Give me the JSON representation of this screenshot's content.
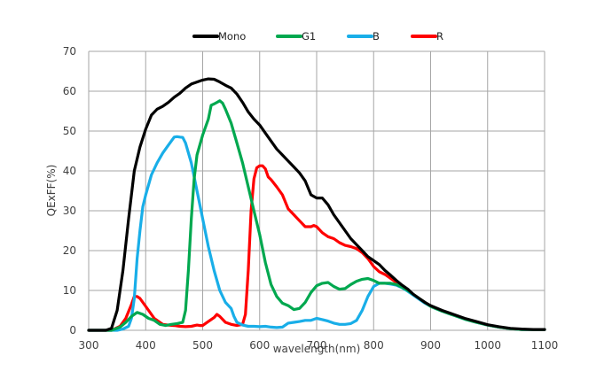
{
  "chart_data": {
    "type": "line",
    "title": "",
    "xlabel": "wavelength(nm)",
    "ylabel": "QExFF(%)",
    "xlim": [
      300,
      1100
    ],
    "ylim": [
      0,
      70
    ],
    "xticks": [
      300,
      400,
      500,
      600,
      700,
      800,
      900,
      1000,
      1100
    ],
    "yticks": [
      0,
      10,
      20,
      30,
      40,
      50,
      60,
      70
    ],
    "grid": true,
    "legend_position": "top",
    "series": [
      {
        "name": "Mono",
        "color": "#000000",
        "points": [
          [
            300,
            0
          ],
          [
            330,
            0
          ],
          [
            340,
            0.5
          ],
          [
            350,
            5
          ],
          [
            360,
            15
          ],
          [
            370,
            28
          ],
          [
            380,
            40
          ],
          [
            390,
            46
          ],
          [
            400,
            50.5
          ],
          [
            410,
            54
          ],
          [
            420,
            55.5
          ],
          [
            430,
            56.2
          ],
          [
            440,
            57.2
          ],
          [
            450,
            58.5
          ],
          [
            460,
            59.5
          ],
          [
            470,
            60.8
          ],
          [
            480,
            61.8
          ],
          [
            490,
            62.3
          ],
          [
            500,
            62.8
          ],
          [
            510,
            63.1
          ],
          [
            520,
            63
          ],
          [
            530,
            62.3
          ],
          [
            540,
            61.5
          ],
          [
            550,
            60.8
          ],
          [
            560,
            59.3
          ],
          [
            570,
            57.2
          ],
          [
            580,
            54.8
          ],
          [
            590,
            53
          ],
          [
            600,
            51.5
          ],
          [
            610,
            49.5
          ],
          [
            620,
            47.5
          ],
          [
            630,
            45.5
          ],
          [
            640,
            44
          ],
          [
            650,
            42.5
          ],
          [
            660,
            41
          ],
          [
            670,
            39.5
          ],
          [
            680,
            37.5
          ],
          [
            690,
            34
          ],
          [
            700,
            33.2
          ],
          [
            710,
            33.2
          ],
          [
            720,
            31.5
          ],
          [
            730,
            29
          ],
          [
            740,
            27
          ],
          [
            750,
            25
          ],
          [
            760,
            23
          ],
          [
            770,
            21.5
          ],
          [
            780,
            20
          ],
          [
            790,
            18.5
          ],
          [
            800,
            17.5
          ],
          [
            810,
            16.5
          ],
          [
            820,
            15
          ],
          [
            830,
            13.8
          ],
          [
            840,
            12.5
          ],
          [
            850,
            11.3
          ],
          [
            860,
            10.3
          ],
          [
            870,
            9
          ],
          [
            880,
            8
          ],
          [
            890,
            7
          ],
          [
            900,
            6.2
          ],
          [
            920,
            5
          ],
          [
            940,
            4
          ],
          [
            960,
            3
          ],
          [
            980,
            2.2
          ],
          [
            1000,
            1.4
          ],
          [
            1020,
            0.9
          ],
          [
            1040,
            0.5
          ],
          [
            1060,
            0.3
          ],
          [
            1080,
            0.2
          ],
          [
            1100,
            0.2
          ]
        ]
      },
      {
        "name": "G1",
        "color": "#00a84f",
        "points": [
          [
            300,
            0
          ],
          [
            340,
            0
          ],
          [
            355,
            0.8
          ],
          [
            365,
            2
          ],
          [
            375,
            3.5
          ],
          [
            385,
            4.5
          ],
          [
            395,
            4
          ],
          [
            405,
            3
          ],
          [
            415,
            2.5
          ],
          [
            425,
            1.5
          ],
          [
            435,
            1.2
          ],
          [
            445,
            1.5
          ],
          [
            455,
            1.7
          ],
          [
            465,
            2
          ],
          [
            470,
            5
          ],
          [
            475,
            15
          ],
          [
            480,
            28
          ],
          [
            485,
            38
          ],
          [
            490,
            44
          ],
          [
            500,
            49
          ],
          [
            510,
            53
          ],
          [
            515,
            56.5
          ],
          [
            520,
            56.8
          ],
          [
            525,
            57.2
          ],
          [
            530,
            57.6
          ],
          [
            535,
            57
          ],
          [
            540,
            55.5
          ],
          [
            550,
            52
          ],
          [
            560,
            47
          ],
          [
            570,
            42
          ],
          [
            580,
            36
          ],
          [
            590,
            30
          ],
          [
            600,
            24
          ],
          [
            610,
            17
          ],
          [
            620,
            11.5
          ],
          [
            630,
            8.5
          ],
          [
            640,
            6.8
          ],
          [
            650,
            6.2
          ],
          [
            660,
            5.2
          ],
          [
            670,
            5.5
          ],
          [
            680,
            7
          ],
          [
            690,
            9.5
          ],
          [
            700,
            11.2
          ],
          [
            710,
            11.8
          ],
          [
            720,
            12
          ],
          [
            730,
            11
          ],
          [
            740,
            10.3
          ],
          [
            750,
            10.5
          ],
          [
            760,
            11.5
          ],
          [
            770,
            12.3
          ],
          [
            780,
            12.8
          ],
          [
            790,
            13
          ],
          [
            800,
            12.5
          ],
          [
            810,
            11.8
          ],
          [
            820,
            11.8
          ],
          [
            830,
            11.8
          ],
          [
            840,
            11.5
          ],
          [
            850,
            10.8
          ],
          [
            860,
            10
          ],
          [
            870,
            9
          ],
          [
            880,
            8
          ],
          [
            890,
            7
          ],
          [
            900,
            6
          ],
          [
            920,
            4.8
          ],
          [
            940,
            3.8
          ],
          [
            960,
            2.8
          ],
          [
            980,
            2
          ],
          [
            1000,
            1.3
          ],
          [
            1020,
            0.8
          ],
          [
            1040,
            0.4
          ],
          [
            1060,
            0.2
          ],
          [
            1080,
            0.2
          ],
          [
            1100,
            0.2
          ]
        ]
      },
      {
        "name": "B",
        "color": "#19aee8",
        "points": [
          [
            300,
            0
          ],
          [
            350,
            0
          ],
          [
            360,
            0.3
          ],
          [
            370,
            1
          ],
          [
            375,
            3
          ],
          [
            380,
            8
          ],
          [
            385,
            18
          ],
          [
            390,
            25
          ],
          [
            395,
            31
          ],
          [
            400,
            34
          ],
          [
            410,
            39
          ],
          [
            420,
            42
          ],
          [
            430,
            44.5
          ],
          [
            440,
            46.5
          ],
          [
            450,
            48.5
          ],
          [
            455,
            48.6
          ],
          [
            460,
            48.5
          ],
          [
            465,
            48.4
          ],
          [
            470,
            47
          ],
          [
            480,
            42
          ],
          [
            490,
            35
          ],
          [
            500,
            28
          ],
          [
            510,
            21
          ],
          [
            520,
            15
          ],
          [
            530,
            10
          ],
          [
            540,
            7
          ],
          [
            550,
            5.5
          ],
          [
            555,
            3.5
          ],
          [
            560,
            2
          ],
          [
            570,
            1.3
          ],
          [
            580,
            1
          ],
          [
            590,
            1
          ],
          [
            600,
            0.9
          ],
          [
            610,
            1
          ],
          [
            620,
            0.8
          ],
          [
            630,
            0.7
          ],
          [
            640,
            0.8
          ],
          [
            650,
            1.8
          ],
          [
            660,
            2
          ],
          [
            670,
            2.2
          ],
          [
            680,
            2.5
          ],
          [
            690,
            2.5
          ],
          [
            700,
            3
          ],
          [
            710,
            2.7
          ],
          [
            720,
            2.3
          ],
          [
            730,
            1.8
          ],
          [
            740,
            1.5
          ],
          [
            750,
            1.5
          ],
          [
            760,
            1.7
          ],
          [
            770,
            2.5
          ],
          [
            780,
            5
          ],
          [
            790,
            8.5
          ],
          [
            800,
            11
          ],
          [
            810,
            11.8
          ],
          [
            820,
            11.8
          ],
          [
            830,
            11.6
          ],
          [
            840,
            11.3
          ],
          [
            850,
            10.7
          ],
          [
            860,
            9.8
          ],
          [
            870,
            8.8
          ],
          [
            880,
            7.8
          ],
          [
            890,
            6.8
          ],
          [
            900,
            6
          ],
          [
            920,
            4.8
          ],
          [
            940,
            3.8
          ],
          [
            960,
            2.8
          ],
          [
            980,
            2
          ],
          [
            1000,
            1.3
          ],
          [
            1020,
            0.8
          ],
          [
            1040,
            0.4
          ],
          [
            1060,
            0.2
          ],
          [
            1080,
            0.2
          ],
          [
            1100,
            0.2
          ]
        ]
      },
      {
        "name": "R",
        "color": "#ff0000",
        "points": [
          [
            300,
            0
          ],
          [
            340,
            0
          ],
          [
            355,
            1
          ],
          [
            365,
            3
          ],
          [
            375,
            6.5
          ],
          [
            380,
            8.5
          ],
          [
            385,
            8.5
          ],
          [
            390,
            8
          ],
          [
            400,
            6
          ],
          [
            410,
            4
          ],
          [
            415,
            3
          ],
          [
            420,
            2.5
          ],
          [
            430,
            1.5
          ],
          [
            440,
            1.3
          ],
          [
            450,
            1.2
          ],
          [
            460,
            1
          ],
          [
            470,
            0.9
          ],
          [
            480,
            1
          ],
          [
            490,
            1.3
          ],
          [
            495,
            1.2
          ],
          [
            500,
            1.2
          ],
          [
            510,
            2.2
          ],
          [
            520,
            3.2
          ],
          [
            525,
            4
          ],
          [
            530,
            3.5
          ],
          [
            540,
            2
          ],
          [
            550,
            1.5
          ],
          [
            560,
            1.2
          ],
          [
            570,
            1.5
          ],
          [
            575,
            4
          ],
          [
            580,
            15
          ],
          [
            585,
            30
          ],
          [
            590,
            38
          ],
          [
            595,
            40.8
          ],
          [
            600,
            41.3
          ],
          [
            605,
            41.3
          ],
          [
            610,
            40.5
          ],
          [
            615,
            38.5
          ],
          [
            620,
            37.8
          ],
          [
            630,
            36
          ],
          [
            640,
            34
          ],
          [
            650,
            30.5
          ],
          [
            660,
            29
          ],
          [
            670,
            27.5
          ],
          [
            680,
            26
          ],
          [
            690,
            26
          ],
          [
            695,
            26.3
          ],
          [
            700,
            26
          ],
          [
            710,
            24.5
          ],
          [
            720,
            23.5
          ],
          [
            730,
            23
          ],
          [
            740,
            22
          ],
          [
            750,
            21.3
          ],
          [
            760,
            21
          ],
          [
            770,
            20.5
          ],
          [
            780,
            19.5
          ],
          [
            790,
            18
          ],
          [
            800,
            16
          ],
          [
            810,
            14.7
          ],
          [
            820,
            14
          ],
          [
            830,
            13
          ],
          [
            840,
            12
          ],
          [
            850,
            11
          ],
          [
            860,
            10
          ],
          [
            870,
            9
          ],
          [
            880,
            8
          ],
          [
            890,
            7
          ],
          [
            900,
            6.1
          ],
          [
            920,
            4.9
          ],
          [
            940,
            3.9
          ],
          [
            960,
            2.9
          ],
          [
            980,
            2.1
          ],
          [
            1000,
            1.3
          ],
          [
            1020,
            0.8
          ],
          [
            1040,
            0.4
          ],
          [
            1060,
            0.2
          ],
          [
            1080,
            0.2
          ],
          [
            1100,
            0.2
          ]
        ]
      }
    ]
  }
}
